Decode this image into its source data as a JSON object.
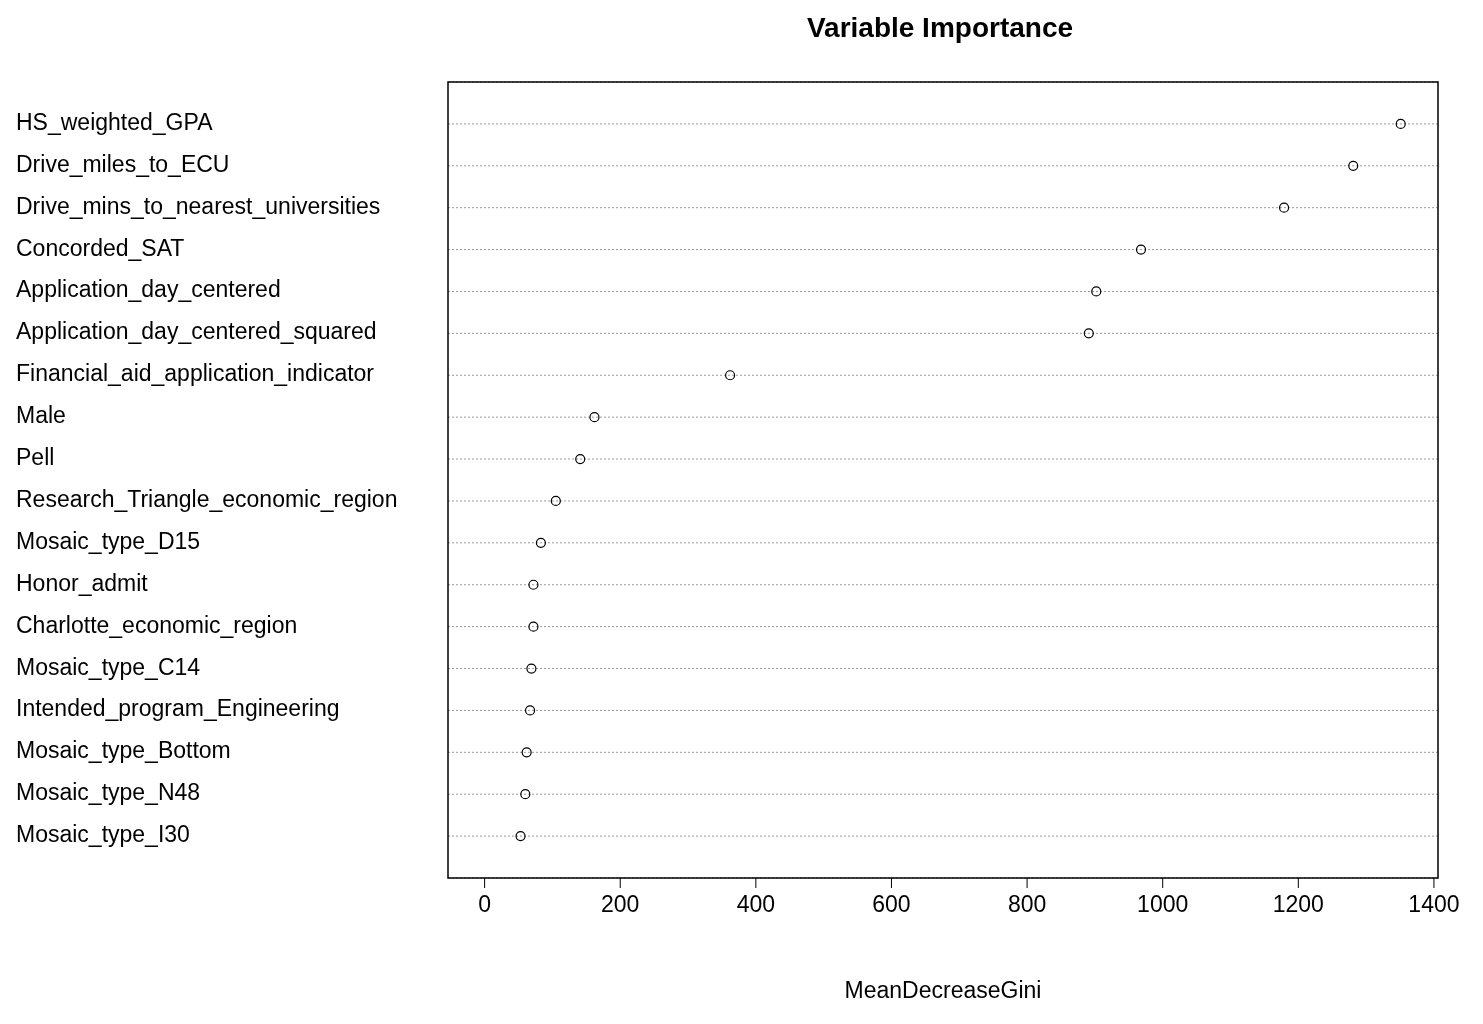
{
  "chart_data": {
    "type": "scatter",
    "orientation": "horizontal",
    "title": "Variable Importance",
    "xlabel": "MeanDecreaseGini",
    "categories": [
      "HS_weighted_GPA",
      "Drive_miles_to_ECU",
      "Drive_mins_to_nearest_universities",
      "Concorded_SAT",
      "Application_day_centered",
      "Application_day_centered_squared",
      "Financial_aid_application_indicator",
      "Male",
      "Pell",
      "Research_Triangle_economic_region",
      "Mosaic_type_D15",
      "Honor_admit",
      "Charlotte_economic_region",
      "Mosaic_type_C14",
      "Intended_program_Engineering",
      "Mosaic_type_Bottom",
      "Mosaic_type_N48",
      "Mosaic_type_I30"
    ],
    "values": [
      1351,
      1281,
      1179,
      968,
      902,
      891,
      362,
      162,
      141,
      105,
      83,
      72,
      72,
      69,
      67,
      62,
      60,
      53
    ],
    "color": "#000000",
    "marker": "circle",
    "grid": "y",
    "line_style": "dotted",
    "xlim": [
      -54,
      1406
    ],
    "xticks": [
      0,
      200,
      400,
      600,
      800,
      1000,
      1200,
      1400
    ]
  }
}
